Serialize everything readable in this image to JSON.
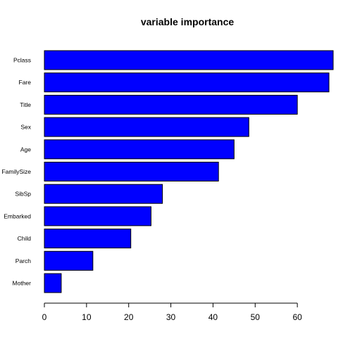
{
  "chart_data": {
    "type": "bar",
    "orientation": "horizontal",
    "title": "variable importance",
    "xlabel": "",
    "ylabel": "",
    "categories": [
      "Pclass",
      "Fare",
      "Title",
      "Sex",
      "Age",
      "FamilySize",
      "SibSp",
      "Embarked",
      "Child",
      "Parch",
      "Mother"
    ],
    "values": [
      68.5,
      67.5,
      60.0,
      48.5,
      45.0,
      41.3,
      28.0,
      25.3,
      20.5,
      11.5,
      4.0
    ],
    "xlim": [
      0,
      68.5
    ],
    "xticks": [
      0,
      10,
      20,
      30,
      40,
      50,
      60
    ],
    "grid": false,
    "legend": "none",
    "bar_color": "#0000ff",
    "bar_border_color": "#000000"
  }
}
